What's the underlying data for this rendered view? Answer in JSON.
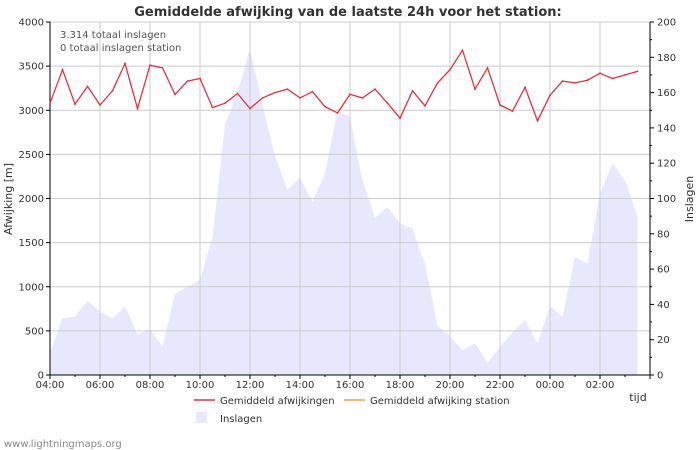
{
  "chart_data": {
    "type": "line",
    "title": "Gemiddelde afwijking van de laatste 24h voor het station:",
    "ylabel_left": "Afwijking  [m]",
    "ylabel_right": "Inslagen",
    "xlabel": "tijd",
    "ylim_left": [
      0,
      4000
    ],
    "ylim_right": [
      0,
      200
    ],
    "y_ticks_left": [
      "0",
      "500",
      "1000",
      "1500",
      "2000",
      "2500",
      "3000",
      "3500",
      "4000"
    ],
    "y_ticks_right": [
      "0",
      "20",
      "40",
      "60",
      "80",
      "100",
      "120",
      "140",
      "160",
      "180",
      "200"
    ],
    "x_ticks": [
      "04:00",
      "06:00",
      "08:00",
      "10:00",
      "12:00",
      "14:00",
      "16:00",
      "18:00",
      "20:00",
      "22:00",
      "00:00",
      "02:00"
    ],
    "annotations": [
      "3.314 totaal inslagen",
      "0 totaal inslagen station"
    ],
    "legend": {
      "afwijkingen": "Gemiddeld afwijkingen",
      "station": "Gemiddeld afwijking station",
      "inslagen": "Inslagen"
    },
    "colors": {
      "afwijkingen": "#e8313d",
      "station": "#f0a050",
      "inslagen_fill": "#e8e8fc",
      "grid": "#cccccc",
      "axis": "#000000",
      "text": "#333333"
    },
    "series": [
      {
        "name": "Gemiddeld afwijkingen",
        "axis": "left",
        "x": [
          0,
          0.5,
          1,
          1.5,
          2,
          2.5,
          3,
          3.5,
          4,
          4.5,
          5,
          5.5,
          6,
          6.5,
          7,
          7.5,
          8,
          8.5,
          9,
          9.5,
          10,
          10.5,
          11,
          11.5,
          12,
          12.5,
          13,
          13.5,
          14,
          14.5,
          15,
          15.5,
          16,
          16.5,
          17,
          17.5,
          18,
          18.5,
          19,
          19.5,
          20,
          20.5,
          21,
          21.5,
          22,
          22.5,
          23,
          23.5
        ],
        "values": [
          3080,
          3460,
          3070,
          3270,
          3060,
          3220,
          3530,
          3020,
          3510,
          3480,
          3180,
          3330,
          3360,
          3030,
          3080,
          3190,
          3020,
          3140,
          3200,
          3240,
          3140,
          3210,
          3040,
          2970,
          3180,
          3140,
          3240,
          3080,
          2910,
          3220,
          3050,
          3310,
          3460,
          3680,
          3240,
          3480,
          3060,
          2990,
          3260,
          2880,
          3170,
          3330,
          3310,
          3340,
          3420,
          3360,
          3400,
          3440
        ]
      },
      {
        "name": "Inslagen",
        "axis": "right",
        "type": "area",
        "x": [
          0,
          0.5,
          1,
          1.5,
          2,
          2.5,
          3,
          3.5,
          4,
          4.5,
          5,
          5.5,
          6,
          6.5,
          7,
          7.5,
          8,
          8.5,
          9,
          9.5,
          10,
          10.5,
          11,
          11.5,
          12,
          12.5,
          13,
          13.5,
          14,
          14.5,
          15,
          15.5,
          16,
          16.5,
          17,
          17.5,
          18,
          18.5,
          19,
          19.5,
          20,
          20.5,
          21,
          21.5,
          22,
          22.5,
          23,
          23.5
        ],
        "values": [
          13,
          32,
          33,
          42,
          36,
          32,
          39,
          23,
          26,
          16,
          46,
          50,
          54,
          78,
          142,
          160,
          185,
          153,
          124,
          105,
          112,
          98,
          114,
          150,
          146,
          110,
          89,
          95,
          86,
          83,
          63,
          28,
          22,
          14,
          18,
          7,
          16,
          24,
          31,
          18,
          39,
          33,
          67,
          63,
          103,
          120,
          110,
          90
        ]
      },
      {
        "name": "Gemiddeld afwijking station",
        "axis": "left",
        "values": []
      }
    ]
  },
  "footer": {
    "credit": "www.lightningmaps.org"
  }
}
